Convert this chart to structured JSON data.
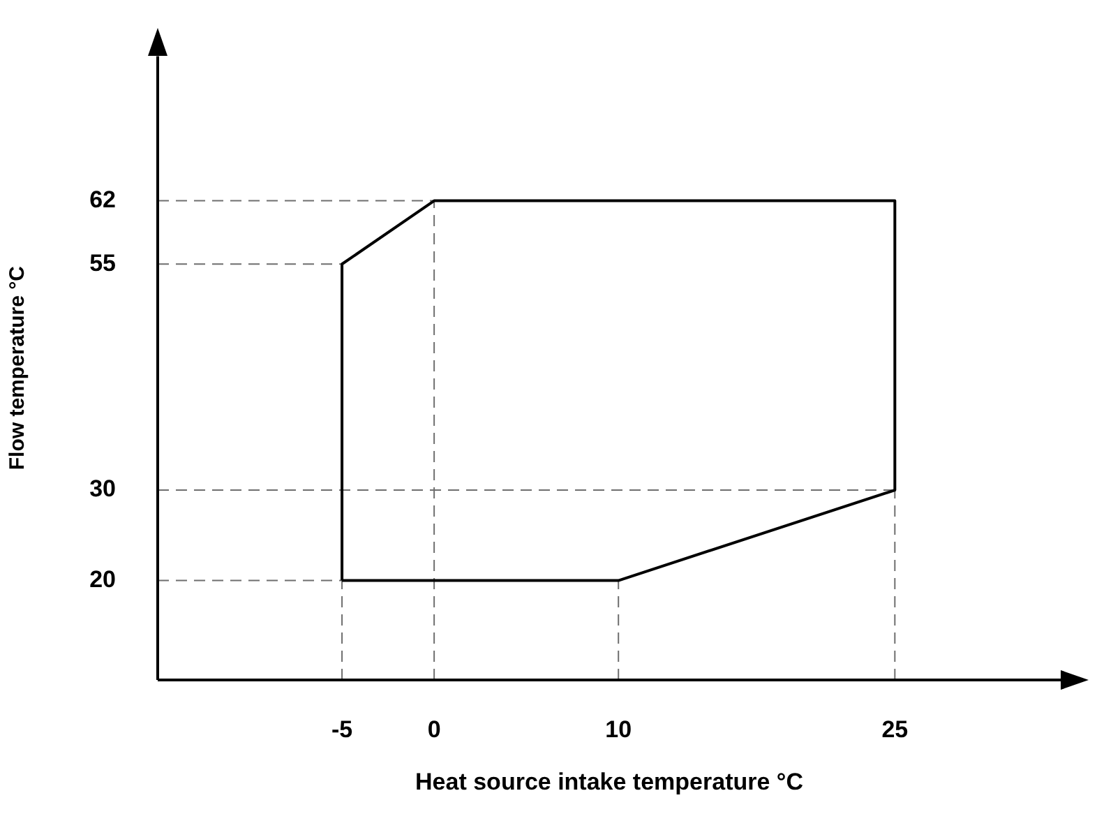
{
  "chart_data": {
    "type": "line",
    "xlabel": "Heat source intake temperature °C",
    "ylabel": "Flow temperature °C",
    "series": [
      {
        "color": "#000000",
        "x": [
          -5,
          -5,
          0,
          25,
          25
        ],
        "values": [
          20,
          55,
          62,
          62,
          30
        ]
      },
      {
        "color": "#000000",
        "x": [
          -5,
          10,
          25
        ],
        "values": [
          20,
          20,
          30
        ]
      }
    ],
    "xlim": [
      -15,
      34
    ],
    "ylim": [
      9,
      78
    ],
    "xticks": [
      -5,
      0,
      10,
      25
    ],
    "yticks": [
      20,
      30,
      55,
      62
    ],
    "grid": false,
    "legend": false,
    "marker": "none",
    "line_style": "solid",
    "ref_lines": [
      {
        "axis": "x",
        "value": -5,
        "color": "#6e6e6e",
        "line_style": "dashed"
      },
      {
        "axis": "x",
        "value": 0,
        "color": "#6e6e6e",
        "line_style": "dashed"
      },
      {
        "axis": "x",
        "value": 10,
        "color": "#6e6e6e",
        "line_style": "dashed"
      },
      {
        "axis": "x",
        "value": 25,
        "color": "#6e6e6e",
        "line_style": "dashed"
      },
      {
        "axis": "y",
        "value": 20,
        "color": "#6e6e6e",
        "line_style": "dashed"
      },
      {
        "axis": "y",
        "value": 30,
        "color": "#6e6e6e",
        "line_style": "dashed"
      },
      {
        "axis": "y",
        "value": 55,
        "color": "#6e6e6e",
        "line_style": "dashed"
      },
      {
        "axis": "y",
        "value": 62,
        "color": "#6e6e6e",
        "line_style": "dashed"
      }
    ]
  }
}
